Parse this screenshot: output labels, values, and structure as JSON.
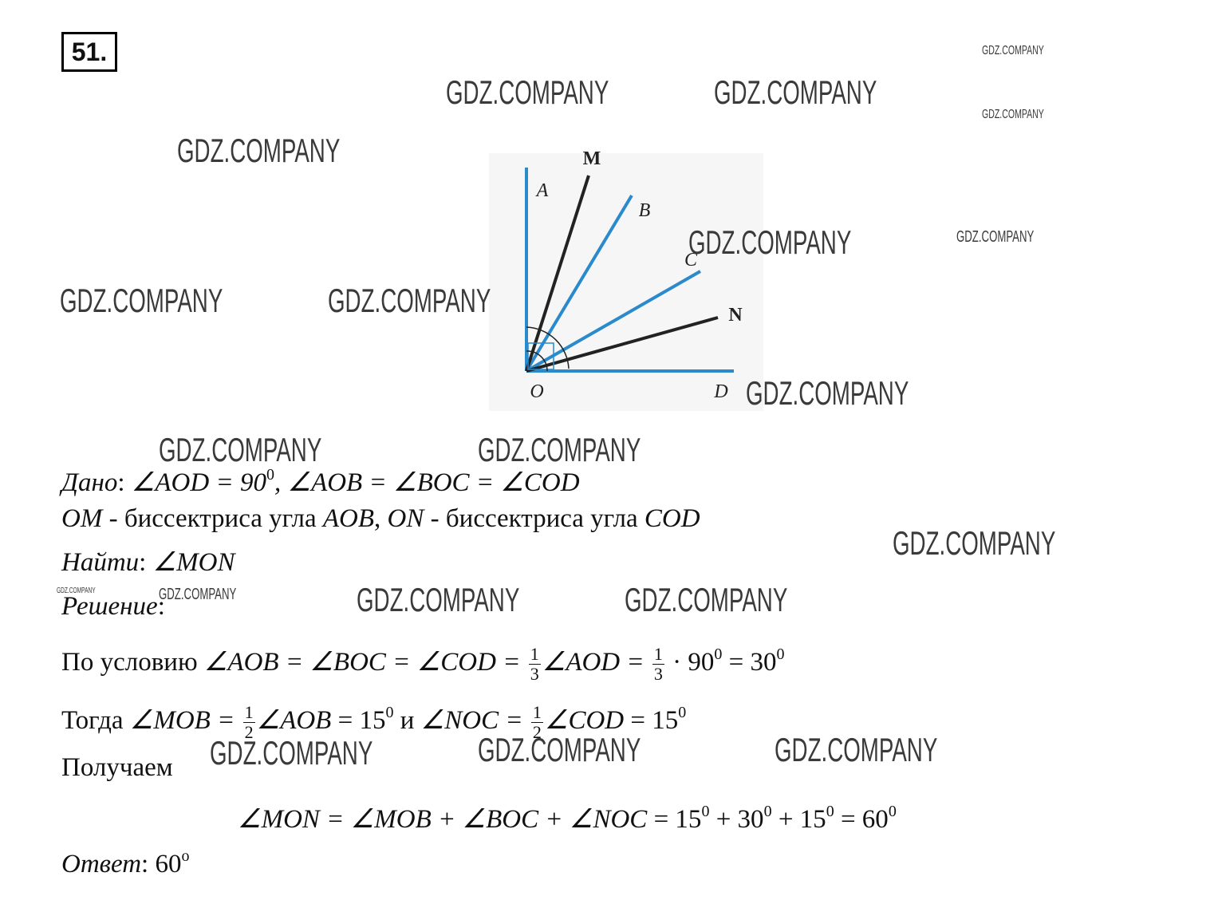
{
  "problem_number": "51.",
  "diagram": {
    "labels": [
      "M",
      "A",
      "B",
      "C",
      "N",
      "O",
      "D"
    ]
  },
  "watermarks": [
    "GDZ.COMPANY",
    "GDZ.COMPANY",
    "GDZ.COMPANY",
    "GDZ.COMPANY",
    "GDZ.COMPANY",
    "GDZ.COMPANY",
    "GDZ.COMPANY",
    "GDZ.COMPANY",
    "GDZ.COMPANY",
    "GDZ.COMPANY",
    "GDZ.COMPANY",
    "GDZ.COMPANY",
    "GDZ.COMPANY",
    "GDZ.COMPANY",
    "GDZ.COMPANY",
    "GDZ.COMPANY",
    "GDZ.COMPANY",
    "GDZ.COMPANY",
    "GDZ.COMPANY",
    "GDZ.COMPANY"
  ],
  "solution": [
    [
      {
        "text": "Дано",
        "italic": true
      },
      {
        "text": ": "
      },
      {
        "text": "∠AOD = 90",
        "italic": true
      },
      {
        "sup": "0"
      },
      {
        "text": ", ∠AOB = ∠BOC = ∠COD",
        "italic": true
      }
    ],
    [
      {
        "text": "OM",
        "italic": true
      },
      {
        "text": " - биссектриса угла "
      },
      {
        "text": "AOB",
        "italic": true
      },
      {
        "text": ", "
      },
      {
        "text": "ON",
        "italic": true
      },
      {
        "text": " - биссектриса угла "
      },
      {
        "text": "COD",
        "italic": true
      }
    ],
    [
      {
        "text": "Найти",
        "italic": true
      },
      {
        "text": ": "
      },
      {
        "text": "∠MON",
        "italic": true
      }
    ],
    [
      {
        "text": "Решение",
        "italic": true
      },
      {
        "text": ":"
      }
    ],
    [
      {
        "text": "По условию "
      },
      {
        "text": "∠AOB = ∠BOC = ∠COD = ",
        "italic": true
      },
      {
        "frac": [
          "1",
          "3"
        ]
      },
      {
        "text": "∠AOD = ",
        "italic": true
      },
      {
        "frac": [
          "1",
          "3"
        ]
      },
      {
        "text": " · 90"
      },
      {
        "sup": "0"
      },
      {
        "text": " = 30"
      },
      {
        "sup": "0"
      }
    ],
    [
      {
        "text": "Тогда "
      },
      {
        "text": "∠MOB = ",
        "italic": true
      },
      {
        "frac": [
          "1",
          "2"
        ]
      },
      {
        "text": "∠AOB",
        "italic": true
      },
      {
        "text": " = 15"
      },
      {
        "sup": "0"
      },
      {
        "text": " и "
      },
      {
        "text": "∠NOC = ",
        "italic": true
      },
      {
        "frac": [
          "1",
          "2"
        ]
      },
      {
        "text": "∠COD",
        "italic": true
      },
      {
        "text": " = 15"
      },
      {
        "sup": "0"
      }
    ],
    [
      {
        "text": "Получаем"
      }
    ],
    [
      {
        "text": "∠MON = ∠MOB + ∠BOC + ∠NOC",
        "italic": true
      },
      {
        "text": " = 15"
      },
      {
        "sup": "0"
      },
      {
        "text": " + 30"
      },
      {
        "sup": "0"
      },
      {
        "text": " + 15"
      },
      {
        "sup": "0"
      },
      {
        "text": " = 60"
      },
      {
        "sup": "0"
      }
    ],
    [
      {
        "text": "Ответ",
        "italic": true
      },
      {
        "text": ": 60"
      },
      {
        "sup": "o"
      }
    ]
  ]
}
